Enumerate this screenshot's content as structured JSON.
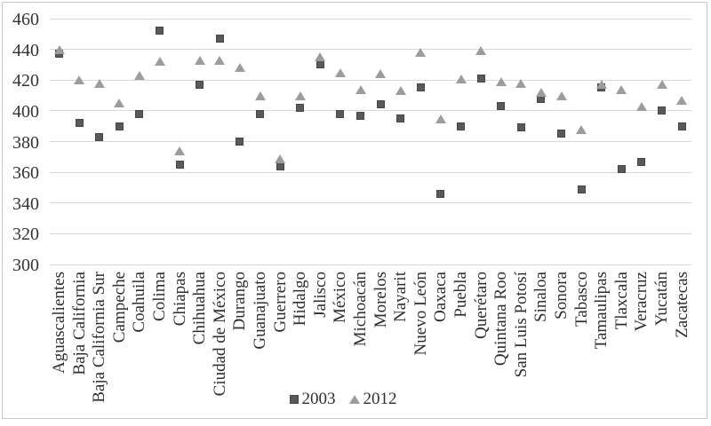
{
  "figure": {
    "background": "#ffffff",
    "border_color": "#c9c9c9"
  },
  "chart_data": {
    "type": "scatter",
    "title": "",
    "xlabel": "",
    "ylabel": "",
    "ylim": [
      300,
      460
    ],
    "yticks": [
      460,
      440,
      420,
      400,
      380,
      360,
      340,
      320,
      300
    ],
    "grid": "horizontal-only",
    "gridline_color": "#d9d9d9",
    "axis_text_color": "#2e2e2e",
    "legend_position": "bottom-center",
    "categories": [
      "Aguascalientes",
      "Baja California",
      "Baja California Sur",
      "Campeche",
      "Coahuila",
      "Colima",
      "Chiapas",
      "Chihuahua",
      "Ciudad de México",
      "Durango",
      "Guanajuato",
      "Guerrero",
      "Hidalgo",
      "Jalisco",
      "México",
      "Michoacán",
      "Morelos",
      "Nayarit",
      "Nuevo León",
      "Oaxaca",
      "Puebla",
      "Querétaro",
      "Quintana Roo",
      "San Luis Potosí",
      "Sinaloa",
      "Sonora",
      "Tabasco",
      "Tamaulipas",
      "Tlaxcala",
      "Veracruz",
      "Yucatán",
      "Zacatecas"
    ],
    "series": [
      {
        "name": "2003",
        "marker": "square",
        "color": "#595959",
        "values": [
          437,
          392,
          383,
          390,
          398,
          452,
          365,
          417,
          447,
          380,
          398,
          364,
          402,
          430,
          398,
          397,
          404,
          395,
          415,
          346,
          390,
          421,
          403,
          389,
          408,
          385,
          349,
          415,
          362,
          367,
          400,
          390
        ]
      },
      {
        "name": "2012",
        "marker": "triangle",
        "color": "#9c9c9c",
        "values": [
          440,
          420,
          418,
          405,
          423,
          432,
          374,
          433,
          433,
          428,
          410,
          369,
          410,
          435,
          425,
          414,
          424,
          413,
          438,
          395,
          421,
          439,
          419,
          418,
          412,
          410,
          388,
          417,
          414,
          403,
          417,
          407
        ]
      }
    ]
  }
}
